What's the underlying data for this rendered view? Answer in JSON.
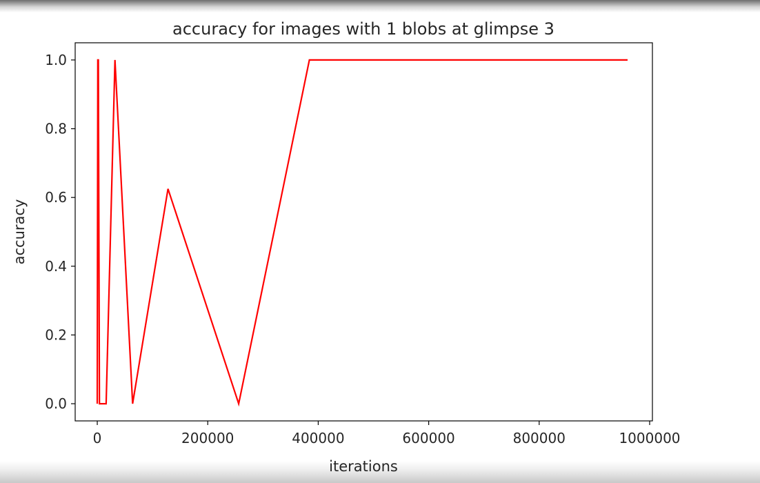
{
  "chart_data": {
    "type": "line",
    "title": "accuracy for images with 1 blobs at glimpse 3",
    "xlabel": "iterations",
    "ylabel": "accuracy",
    "xlim": [
      -40000,
      1005000
    ],
    "ylim": [
      -0.05,
      1.05
    ],
    "xticks": [
      0,
      200000,
      400000,
      600000,
      800000,
      1000000
    ],
    "xtick_labels": [
      "0",
      "200000",
      "400000",
      "600000",
      "800000",
      "1000000"
    ],
    "yticks": [
      0.0,
      0.2,
      0.4,
      0.6,
      0.8,
      1.0
    ],
    "ytick_labels": [
      "0.0",
      "0.2",
      "0.4",
      "0.6",
      "0.8",
      "1.0"
    ],
    "grid": false,
    "series": [
      {
        "color": "#ff0000",
        "x": [
          0,
          1000,
          2000,
          4000,
          8000,
          16000,
          32000,
          64000,
          128000,
          256000,
          384000,
          512000,
          640000,
          768000,
          960000
        ],
        "y": [
          0.0,
          1.0,
          1.0,
          0.0,
          0.0,
          0.0,
          1.0,
          0.0,
          0.625,
          0.0,
          1.0,
          1.0,
          1.0,
          1.0,
          1.0
        ]
      }
    ]
  }
}
